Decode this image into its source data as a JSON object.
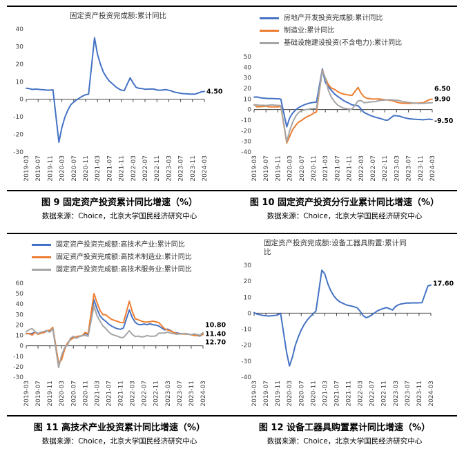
{
  "colors": {
    "blue": "#4472C4",
    "orange": "#ED7D31",
    "gray": "#A5A5A5",
    "axis": "#404040"
  },
  "sections": [
    {
      "figures": [
        {
          "caption": "图 9 固定资产投资累计同比增速（%）",
          "source": "数据来源：Choice，北京大学国民经济研究中心"
        },
        {
          "caption": "图 10 固定资产投资分行业累计同比增速（%）",
          "source": "数据来源：Choice，北京大学国民经济研究中心"
        }
      ]
    },
    {
      "figures": [
        {
          "caption": "图 11 高技术产业投资累计同比增速（%）",
          "source": "数据来源：Choice，北京大学国民经济研究中心"
        },
        {
          "caption": "图 12 设备工器具购置累计同比增速（%）",
          "source": "数据来源：Choice，北京大学国民经济研究中心"
        }
      ]
    }
  ],
  "x_months": [
    "2019-03",
    "2019-04",
    "2019-05",
    "2019-06",
    "2019-07",
    "2019-08",
    "2019-09",
    "2019-10",
    "2019-11",
    "2019-12",
    "2020-02",
    "2020-03",
    "2020-04",
    "2020-05",
    "2020-06",
    "2020-07",
    "2020-08",
    "2020-09",
    "2020-10",
    "2020-11",
    "2020-12",
    "2021-02",
    "2021-03",
    "2021-04",
    "2021-05",
    "2021-06",
    "2021-07",
    "2021-08",
    "2021-09",
    "2021-10",
    "2021-11",
    "2021-12",
    "2022-02",
    "2022-03",
    "2022-04",
    "2022-05",
    "2022-06",
    "2022-07",
    "2022-08",
    "2022-09",
    "2022-10",
    "2022-11",
    "2022-12",
    "2023-02",
    "2023-03",
    "2023-04",
    "2023-05",
    "2023-06",
    "2023-07",
    "2023-08",
    "2023-09",
    "2023-10",
    "2023-11",
    "2023-12",
    "2024-02",
    "2024-03"
  ],
  "chart_data": [
    {
      "id": "fig9",
      "type": "line",
      "title": "固定资产投资完成额:累计同比",
      "ylim": [
        -30,
        40
      ],
      "ystep": 10,
      "x_tick_labels": [
        "2019-03",
        "2019-07",
        "2019-11",
        "2020-03",
        "2020-07",
        "2020-11",
        "2021-03",
        "2021-07",
        "2021-11",
        "2022-03",
        "2022-07",
        "2022-11",
        "2023-03",
        "2023-07",
        "2023-11",
        "2024-03"
      ],
      "series": [
        {
          "name": "固定资产投资完成额:累计同比",
          "color": "#4472C4",
          "end_label": "4.50",
          "label_dy": 0,
          "values": [
            6.3,
            6.1,
            5.6,
            5.8,
            5.7,
            5.5,
            5.4,
            5.2,
            5.2,
            5.4,
            -24.5,
            -16.1,
            -10.3,
            -6.3,
            -3.1,
            -1.6,
            -0.3,
            0.8,
            1.8,
            2.6,
            2.9,
            35.0,
            25.6,
            19.9,
            15.4,
            12.6,
            10.3,
            8.9,
            7.3,
            6.1,
            5.2,
            4.9,
            12.2,
            9.3,
            6.8,
            6.2,
            6.1,
            5.7,
            5.8,
            5.9,
            5.8,
            5.3,
            5.1,
            5.5,
            5.1,
            4.7,
            4.0,
            3.8,
            3.4,
            3.2,
            3.1,
            2.9,
            2.9,
            3.0,
            4.2,
            4.5
          ]
        }
      ]
    },
    {
      "id": "fig10",
      "type": "line",
      "title": "",
      "ylim": [
        -40,
        50
      ],
      "ystep": 10,
      "x_tick_labels": [
        "2019-03",
        "2019-07",
        "2019-11",
        "2020-03",
        "2020-07",
        "2020-11",
        "2021-03",
        "2021-07",
        "2021-11",
        "2022-03",
        "2022-07",
        "2022-11",
        "2023-03",
        "2023-07",
        "2023-11",
        "2024-03"
      ],
      "series": [
        {
          "name": "房地产开发投资完成额:累计同比",
          "color": "#4472C4",
          "end_label": "-9.50",
          "label_dy": 2,
          "values": [
            11.8,
            11.9,
            11.2,
            10.9,
            10.6,
            10.5,
            10.5,
            10.3,
            10.2,
            9.9,
            -16.3,
            -7.7,
            -3.3,
            -0.3,
            1.9,
            3.4,
            4.6,
            5.6,
            6.3,
            6.8,
            7.0,
            38.3,
            25.6,
            21.6,
            18.3,
            15.0,
            12.7,
            10.9,
            8.8,
            7.2,
            6.0,
            4.4,
            3.7,
            0.7,
            -2.7,
            -4.0,
            -5.4,
            -6.4,
            -7.4,
            -8.0,
            -8.8,
            -9.8,
            -10.0,
            -5.7,
            -5.8,
            -6.2,
            -7.2,
            -7.9,
            -8.5,
            -8.8,
            -9.1,
            -9.3,
            -9.4,
            -9.6,
            -9.0,
            -9.5
          ]
        },
        {
          "name": "制造业:累计同比",
          "color": "#ED7D31",
          "end_label": "9.90",
          "label_dy": 0,
          "values": [
            4.6,
            2.5,
            2.7,
            3.0,
            3.3,
            2.6,
            2.5,
            2.6,
            2.5,
            3.1,
            -31.5,
            -25.2,
            -18.8,
            -14.8,
            -11.7,
            -10.2,
            -8.1,
            -6.5,
            -5.3,
            -3.5,
            -2.2,
            37.3,
            29.8,
            23.8,
            20.4,
            19.2,
            17.3,
            15.7,
            14.8,
            14.2,
            13.7,
            13.5,
            20.9,
            15.6,
            12.2,
            10.6,
            10.4,
            9.9,
            10.0,
            10.1,
            9.7,
            9.3,
            9.1,
            8.1,
            7.0,
            6.4,
            6.0,
            6.0,
            5.7,
            5.9,
            6.2,
            6.2,
            6.3,
            6.5,
            9.4,
            9.9
          ]
        },
        {
          "name": "基础设施建设投资(不含电力):累计同比",
          "color": "#A5A5A5",
          "end_label": "6.50",
          "label_dy": -20,
          "values": [
            4.4,
            4.4,
            4.0,
            4.1,
            3.8,
            4.2,
            4.5,
            4.2,
            4.0,
            3.8,
            -30.3,
            -19.7,
            -11.8,
            -6.3,
            -2.7,
            -1.0,
            -0.3,
            0.2,
            0.7,
            1.0,
            0.9,
            36.6,
            29.7,
            18.4,
            11.8,
            7.8,
            4.6,
            2.9,
            1.5,
            1.0,
            0.5,
            0.4,
            8.1,
            8.5,
            6.5,
            6.7,
            7.1,
            7.4,
            7.6,
            8.6,
            8.7,
            8.9,
            9.4,
            9.0,
            8.8,
            8.5,
            7.5,
            7.2,
            6.8,
            6.4,
            6.2,
            5.9,
            5.8,
            5.9,
            6.3,
            6.5
          ]
        }
      ]
    },
    {
      "id": "fig11",
      "type": "line",
      "title": "",
      "ylim": [
        -30,
        60
      ],
      "ystep": 10,
      "x_tick_labels": [
        "2019-03",
        "2019-07",
        "2019-11",
        "2020-03",
        "2020-07",
        "2020-11",
        "2021-03",
        "2021-07",
        "2021-11",
        "2022-03",
        "2022-07",
        "2022-11",
        "2023-03",
        "2023-07",
        "2023-11",
        "2024-03"
      ],
      "series": [
        {
          "name": "固定资产投资完成额:高技术产业:累计同比",
          "color": "#4472C4",
          "end_label": "11.40",
          "label_dy": 0,
          "values": [
            11.8,
            11.4,
            11.9,
            13.0,
            11.1,
            13.0,
            12.6,
            14.2,
            14.1,
            17.3,
            -17.9,
            -12.1,
            -3.0,
            1.9,
            6.3,
            8.0,
            8.2,
            9.1,
            9.7,
            11.8,
            10.6,
            44.2,
            35.5,
            28.8,
            25.6,
            23.5,
            20.7,
            18.9,
            17.4,
            16.3,
            15.8,
            17.1,
            34.4,
            27.0,
            22.5,
            20.5,
            20.2,
            20.9,
            20.2,
            21.0,
            20.2,
            19.9,
            18.9,
            15.2,
            16.0,
            14.7,
            12.8,
            12.5,
            11.8,
            11.4,
            11.3,
            11.1,
            10.5,
            10.3,
            9.4,
            11.4
          ]
        },
        {
          "name": "固定资产投资完成额:高技术制造业:累计同比",
          "color": "#ED7D31",
          "end_label": "10.80",
          "label_dy": -14,
          "values": [
            11.4,
            11.9,
            10.2,
            13.1,
            11.1,
            12.1,
            12.6,
            14.5,
            14.8,
            17.7,
            -16.5,
            -13.5,
            -3.6,
            2.7,
            5.8,
            7.4,
            8.8,
            9.3,
            9.7,
            12.8,
            11.5,
            50.1,
            41.6,
            34.2,
            29.9,
            29.7,
            27.3,
            25.3,
            24.3,
            23.4,
            22.3,
            22.2,
            42.7,
            32.7,
            25.9,
            24.9,
            23.8,
            22.9,
            22.8,
            23.0,
            23.6,
            23.0,
            22.2,
            16.2,
            15.2,
            14.3,
            12.8,
            11.8,
            11.5,
            11.3,
            11.3,
            11.2,
            10.5,
            9.9,
            10.0,
            10.8
          ]
        },
        {
          "name": "固定资产投资完成额:高技术服务业:累计同比",
          "color": "#A5A5A5",
          "end_label": "12.70",
          "label_dy": 14,
          "values": [
            13.5,
            15.5,
            16.5,
            13.5,
            11.9,
            13.1,
            13.8,
            14.6,
            13.0,
            16.5,
            -20.8,
            -9.0,
            -1.9,
            0.7,
            7.2,
            9.2,
            7.2,
            8.7,
            9.7,
            10.0,
            9.1,
            38.2,
            29.1,
            23.9,
            19.3,
            16.6,
            13.2,
            11.1,
            10.1,
            9.2,
            8.0,
            7.9,
            14.4,
            10.8,
            8.9,
            9.3,
            8.5,
            8.8,
            9.8,
            9.2,
            9.1,
            9.5,
            12.1,
            12.3,
            13.1,
            12.3,
            11.6,
            11.1,
            11.3,
            11.5,
            11.8,
            11.3,
            10.6,
            11.4,
            10.2,
            12.7
          ]
        }
      ]
    },
    {
      "id": "fig12",
      "type": "line",
      "title": "固定资产投资完成额:设备工器具购置:累计同比",
      "ylim": [
        -40,
        30
      ],
      "ystep": 10,
      "x_tick_labels": [
        "2019-03",
        "2019-07",
        "2019-11",
        "2020-03",
        "2020-07",
        "2020-11",
        "2021-03",
        "2021-07",
        "2021-11",
        "2022-03",
        "2022-07",
        "2022-11",
        "2023-03",
        "2023-07",
        "2023-11",
        "2024-03"
      ],
      "series": [
        {
          "name": "固定资产投资完成额:设备工器具购置:累计同比",
          "color": "#4472C4",
          "end_label": "17.60",
          "label_dy": -2,
          "values": [
            0.3,
            -0.6,
            -1.0,
            -1.4,
            -1.6,
            -1.8,
            -1.6,
            -1.5,
            -1.0,
            -0.1,
            -24.1,
            -33.0,
            -27.5,
            -20.1,
            -14.9,
            -10.5,
            -7.1,
            -4.4,
            -2.2,
            -0.5,
            1.4,
            26.9,
            24.6,
            18.5,
            14.2,
            11.0,
            8.7,
            7.2,
            6.3,
            5.4,
            4.8,
            4.5,
            3.4,
            1.2,
            -1.5,
            -2.8,
            -2.2,
            -1.0,
            0.3,
            1.6,
            2.4,
            3.0,
            3.5,
            2.0,
            4.2,
            5.3,
            5.8,
            6.1,
            6.4,
            6.3,
            6.5,
            6.4,
            6.5,
            6.6,
            17.0,
            17.6
          ]
        }
      ]
    }
  ]
}
